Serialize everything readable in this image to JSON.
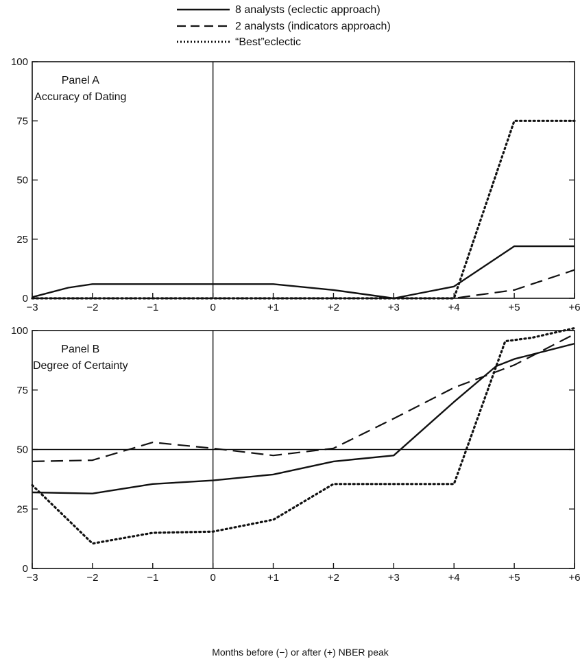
{
  "legend": [
    {
      "label": "8 analysts (eclectic approach)",
      "style": "solid"
    },
    {
      "label": "2 analysts (indicators approach)",
      "style": "dashed"
    },
    {
      "label": "“Best”eclectic",
      "style": "dotted"
    }
  ],
  "xlabel": "Months before (−) or after (+) NBER peak",
  "chart_data": [
    {
      "type": "line",
      "title": "Panel A",
      "subtitle": "Accuracy of Dating",
      "x": [
        -3,
        -2,
        -1,
        0,
        1,
        2,
        3,
        4,
        5,
        6
      ],
      "xtick_labels": [
        "−3",
        "−2",
        "−1",
        "0",
        "+1",
        "+2",
        "+3",
        "+4",
        "+5",
        "+6"
      ],
      "ylim": [
        0,
        100
      ],
      "yticks": [
        0,
        25,
        50,
        75,
        100
      ],
      "series": [
        {
          "name": "8 analysts (eclectic approach)",
          "style": "solid",
          "points": [
            [
              -3,
              0.5
            ],
            [
              -2.4,
              4.5
            ],
            [
              -2,
              6
            ],
            [
              -1,
              6
            ],
            [
              0,
              6
            ],
            [
              1,
              6
            ],
            [
              2,
              3.5
            ],
            [
              3,
              0
            ],
            [
              4,
              5
            ],
            [
              5,
              22
            ],
            [
              6,
              22
            ]
          ]
        },
        {
          "name": "2 analysts (indicators approach)",
          "style": "dashed",
          "points": [
            [
              -3,
              0
            ],
            [
              -2,
              0
            ],
            [
              -1,
              0
            ],
            [
              0,
              0
            ],
            [
              1,
              0
            ],
            [
              2,
              0
            ],
            [
              3,
              0
            ],
            [
              4,
              0
            ],
            [
              5,
              3.5
            ],
            [
              6,
              12
            ]
          ]
        },
        {
          "name": "“Best”eclectic",
          "style": "dotted",
          "points": [
            [
              -3,
              0
            ],
            [
              -2,
              0
            ],
            [
              -1,
              0
            ],
            [
              0,
              0
            ],
            [
              1,
              0
            ],
            [
              2,
              0
            ],
            [
              3,
              0
            ],
            [
              4,
              0
            ],
            [
              5,
              75
            ],
            [
              6,
              75
            ]
          ]
        }
      ]
    },
    {
      "type": "line",
      "title": "Panel B",
      "subtitle": "Degree of Certainty",
      "x": [
        -3,
        -2,
        -1,
        0,
        1,
        2,
        3,
        4,
        5,
        6
      ],
      "xtick_labels": [
        "−3",
        "−2",
        "−1",
        "0",
        "+1",
        "+2",
        "+3",
        "+4",
        "+5",
        "+6"
      ],
      "ylim": [
        0,
        100
      ],
      "yticks": [
        0,
        25,
        50,
        75,
        100
      ],
      "reference_line": 50,
      "series": [
        {
          "name": "8 analysts (eclectic approach)",
          "style": "solid",
          "points": [
            [
              -3,
              32
            ],
            [
              -2,
              31.5
            ],
            [
              -1,
              35.5
            ],
            [
              0,
              37
            ],
            [
              1,
              39.5
            ],
            [
              2,
              45
            ],
            [
              3,
              47.5
            ],
            [
              4,
              70
            ],
            [
              4.7,
              85
            ],
            [
              5,
              88
            ],
            [
              6,
              94.5
            ]
          ]
        },
        {
          "name": "2 analysts (indicators approach)",
          "style": "dashed",
          "points": [
            [
              -3,
              45
            ],
            [
              -2,
              45.5
            ],
            [
              -1,
              53
            ],
            [
              0,
              50.5
            ],
            [
              1,
              47.5
            ],
            [
              2,
              50.5
            ],
            [
              3,
              63
            ],
            [
              4,
              76
            ],
            [
              5,
              85.5
            ],
            [
              6,
              98.5
            ]
          ]
        },
        {
          "name": "“Best”eclectic",
          "style": "dotted",
          "points": [
            [
              -3,
              35
            ],
            [
              -2,
              10.5
            ],
            [
              -1,
              15
            ],
            [
              0,
              15.5
            ],
            [
              1,
              20.5
            ],
            [
              2,
              35.5
            ],
            [
              3,
              35.5
            ],
            [
              4,
              35.5
            ],
            [
              4.85,
              95.5
            ],
            [
              5.3,
              97
            ],
            [
              6,
              101
            ]
          ]
        }
      ]
    }
  ]
}
